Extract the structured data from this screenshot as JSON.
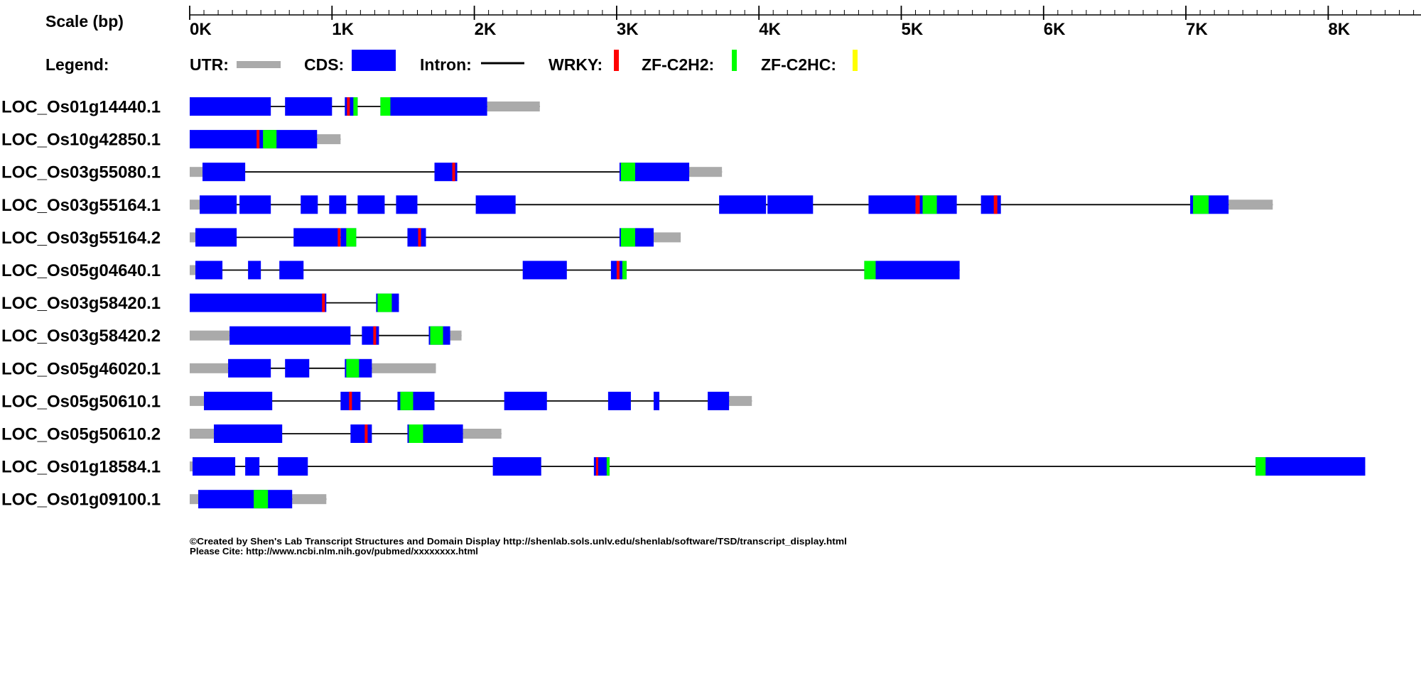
{
  "scale": {
    "label": "Scale (bp)",
    "max_bp": 8800,
    "minor_tick_bp": 100,
    "major_tick_bp": 1000,
    "tick_labels": [
      "0K",
      "1K",
      "2K",
      "3K",
      "4K",
      "5K",
      "6K",
      "7K",
      "8K"
    ]
  },
  "legend": {
    "title": "Legend:",
    "items": [
      {
        "key": "utr",
        "label": "UTR:",
        "color": "#aaaaaa"
      },
      {
        "key": "cds",
        "label": "CDS:",
        "color": "#0000ff"
      },
      {
        "key": "intron",
        "label": "Intron:",
        "color": "#000000"
      },
      {
        "key": "wrky",
        "label": "WRKY:",
        "color": "#ff0000"
      },
      {
        "key": "zfc2h2",
        "label": "ZF-C2H2:",
        "color": "#00ff00"
      },
      {
        "key": "zfc2hc",
        "label": "ZF-C2HC:",
        "color": "#ffff00"
      }
    ]
  },
  "colors": {
    "utr": "#aaaaaa",
    "cds": "#0000ff",
    "intron": "#000000",
    "wrky": "#ff0000",
    "zfc2h2": "#00ff00",
    "zfc2hc": "#ffff00"
  },
  "transcripts": [
    {
      "name": "LOC_Os01g14440.1",
      "start": 0,
      "end": 2460,
      "utr": [
        [
          2090,
          2460
        ]
      ],
      "cds": [
        [
          0,
          570
        ],
        [
          670,
          1000
        ],
        [
          1090,
          1180
        ],
        [
          1340,
          2090
        ]
      ],
      "wrky": [
        [
          1105,
          1125
        ]
      ],
      "zfc2h2": [
        [
          1150,
          1180
        ],
        [
          1340,
          1410
        ]
      ]
    },
    {
      "name": "LOC_Os10g42850.1",
      "start": 0,
      "end": 1060,
      "utr": [
        [
          895,
          1060
        ]
      ],
      "cds": [
        [
          0,
          895
        ]
      ],
      "wrky": [
        [
          470,
          490
        ]
      ],
      "zfc2h2": [
        [
          515,
          610
        ]
      ]
    },
    {
      "name": "LOC_Os03g55080.1",
      "start": 0,
      "end": 3740,
      "utr": [
        [
          0,
          90
        ],
        [
          3510,
          3740
        ]
      ],
      "cds": [
        [
          90,
          390
        ],
        [
          1720,
          1880
        ],
        [
          3020,
          3510
        ]
      ],
      "wrky": [
        [
          1845,
          1865
        ]
      ],
      "zfc2h2": [
        [
          3030,
          3130
        ]
      ]
    },
    {
      "name": "LOC_Os03g55164.1",
      "start": 0,
      "end": 7610,
      "utr": [
        [
          0,
          70
        ],
        [
          7300,
          7610
        ]
      ],
      "cds": [
        [
          70,
          330
        ],
        [
          350,
          570
        ],
        [
          780,
          900
        ],
        [
          980,
          1100
        ],
        [
          1180,
          1370
        ],
        [
          1450,
          1600
        ],
        [
          2010,
          2290
        ],
        [
          3720,
          4050
        ],
        [
          4060,
          4380
        ],
        [
          4770,
          5100
        ],
        [
          5110,
          5390
        ],
        [
          5560,
          5700
        ],
        [
          7030,
          7300
        ]
      ],
      "wrky": [
        [
          5100,
          5130
        ],
        [
          5650,
          5675
        ]
      ],
      "zfc2h2": [
        [
          5150,
          5250
        ],
        [
          7050,
          7160
        ]
      ]
    },
    {
      "name": "LOC_Os03g55164.2",
      "start": 0,
      "end": 3450,
      "utr": [
        [
          0,
          40
        ],
        [
          3260,
          3450
        ]
      ],
      "cds": [
        [
          40,
          330
        ],
        [
          730,
          1050
        ],
        [
          1060,
          1170
        ],
        [
          1530,
          1660
        ],
        [
          3020,
          3260
        ]
      ],
      "wrky": [
        [
          1040,
          1060
        ],
        [
          1605,
          1625
        ]
      ],
      "zfc2h2": [
        [
          1100,
          1170
        ],
        [
          3030,
          3130
        ]
      ]
    },
    {
      "name": "LOC_Os05g04640.1",
      "start": 0,
      "end": 5410,
      "utr": [
        [
          0,
          40
        ]
      ],
      "cds": [
        [
          40,
          230
        ],
        [
          410,
          500
        ],
        [
          630,
          800
        ],
        [
          2340,
          2650
        ],
        [
          2960,
          3070
        ],
        [
          4740,
          5410
        ]
      ],
      "wrky": [
        [
          3000,
          3020
        ]
      ],
      "zfc2h2": [
        [
          3040,
          3070
        ],
        [
          4740,
          4820
        ]
      ]
    },
    {
      "name": "LOC_Os03g58420.1",
      "start": 0,
      "end": 1470,
      "cds": [
        [
          0,
          960
        ],
        [
          1310,
          1470
        ]
      ],
      "wrky": [
        [
          930,
          950
        ]
      ],
      "zfc2h2": [
        [
          1320,
          1420
        ]
      ]
    },
    {
      "name": "LOC_Os03g58420.2",
      "start": 0,
      "end": 1910,
      "utr": [
        [
          0,
          280
        ],
        [
          1830,
          1910
        ]
      ],
      "cds": [
        [
          280,
          1130
        ],
        [
          1210,
          1330
        ],
        [
          1680,
          1830
        ]
      ],
      "wrky": [
        [
          1290,
          1310
        ]
      ],
      "zfc2h2": [
        [
          1690,
          1780
        ]
      ]
    },
    {
      "name": "LOC_Os05g46020.1",
      "start": 0,
      "end": 1730,
      "utr": [
        [
          0,
          270
        ],
        [
          1280,
          1730
        ]
      ],
      "cds": [
        [
          270,
          570
        ],
        [
          670,
          840
        ],
        [
          1090,
          1280
        ]
      ],
      "zfc2h2": [
        [
          1100,
          1190
        ]
      ]
    },
    {
      "name": "LOC_Os05g50610.1",
      "start": 0,
      "end": 3950,
      "utr": [
        [
          0,
          100
        ],
        [
          3790,
          3950
        ]
      ],
      "cds": [
        [
          100,
          580
        ],
        [
          1060,
          1200
        ],
        [
          1460,
          1720
        ],
        [
          2210,
          2510
        ],
        [
          2940,
          3100
        ],
        [
          3260,
          3300
        ],
        [
          3640,
          3790
        ]
      ],
      "wrky": [
        [
          1120,
          1140
        ]
      ],
      "zfc2h2": [
        [
          1480,
          1570
        ]
      ]
    },
    {
      "name": "LOC_Os05g50610.2",
      "start": 0,
      "end": 2190,
      "utr": [
        [
          0,
          170
        ],
        [
          1920,
          2190
        ]
      ],
      "cds": [
        [
          170,
          650
        ],
        [
          1130,
          1280
        ],
        [
          1530,
          1920
        ]
      ],
      "wrky": [
        [
          1230,
          1250
        ]
      ],
      "zfc2h2": [
        [
          1540,
          1640
        ]
      ]
    },
    {
      "name": "LOC_Os01g18584.1",
      "start": 0,
      "end": 8260,
      "utr": [
        [
          0,
          20
        ]
      ],
      "cds": [
        [
          20,
          320
        ],
        [
          390,
          490
        ],
        [
          620,
          830
        ],
        [
          2130,
          2470
        ],
        [
          2840,
          2950
        ],
        [
          7490,
          8260
        ]
      ],
      "wrky": [
        [
          2855,
          2870
        ]
      ],
      "zfc2h2": [
        [
          2930,
          2950
        ],
        [
          7490,
          7560
        ]
      ]
    },
    {
      "name": "LOC_Os01g09100.1",
      "start": 0,
      "end": 960,
      "utr": [
        [
          0,
          60
        ],
        [
          720,
          960
        ]
      ],
      "cds": [
        [
          60,
          720
        ]
      ],
      "zfc2h2": [
        [
          450,
          550
        ]
      ]
    }
  ],
  "credits": {
    "line1": "©Created by Shen's Lab Transcript Structures and Domain Display http://shenlab.sols.unlv.edu/shenlab/software/TSD/transcript_display.html",
    "line2": "Please Cite: http://www.ncbi.nlm.nih.gov/pubmed/xxxxxxxx.html"
  }
}
